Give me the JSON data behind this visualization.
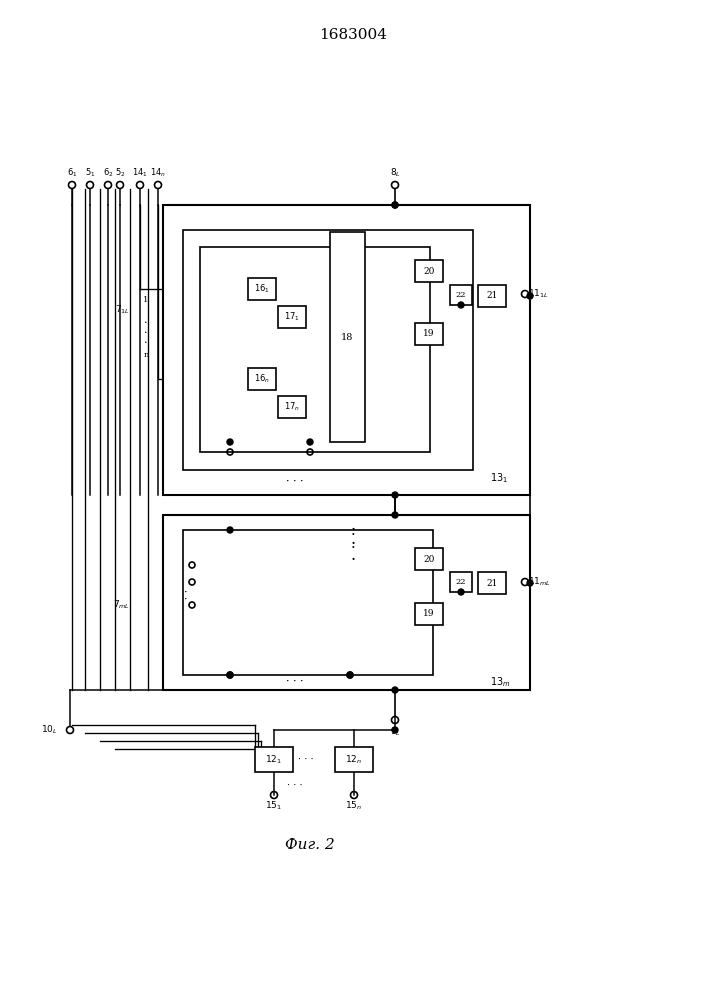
{
  "title": "1683004",
  "fig_caption": "Фиг. 2",
  "bg_color": "#ffffff",
  "line_color": "#000000",
  "lw": 1.2,
  "box_color": "#ffffff",
  "page_width": 7.07,
  "page_height": 10.0
}
